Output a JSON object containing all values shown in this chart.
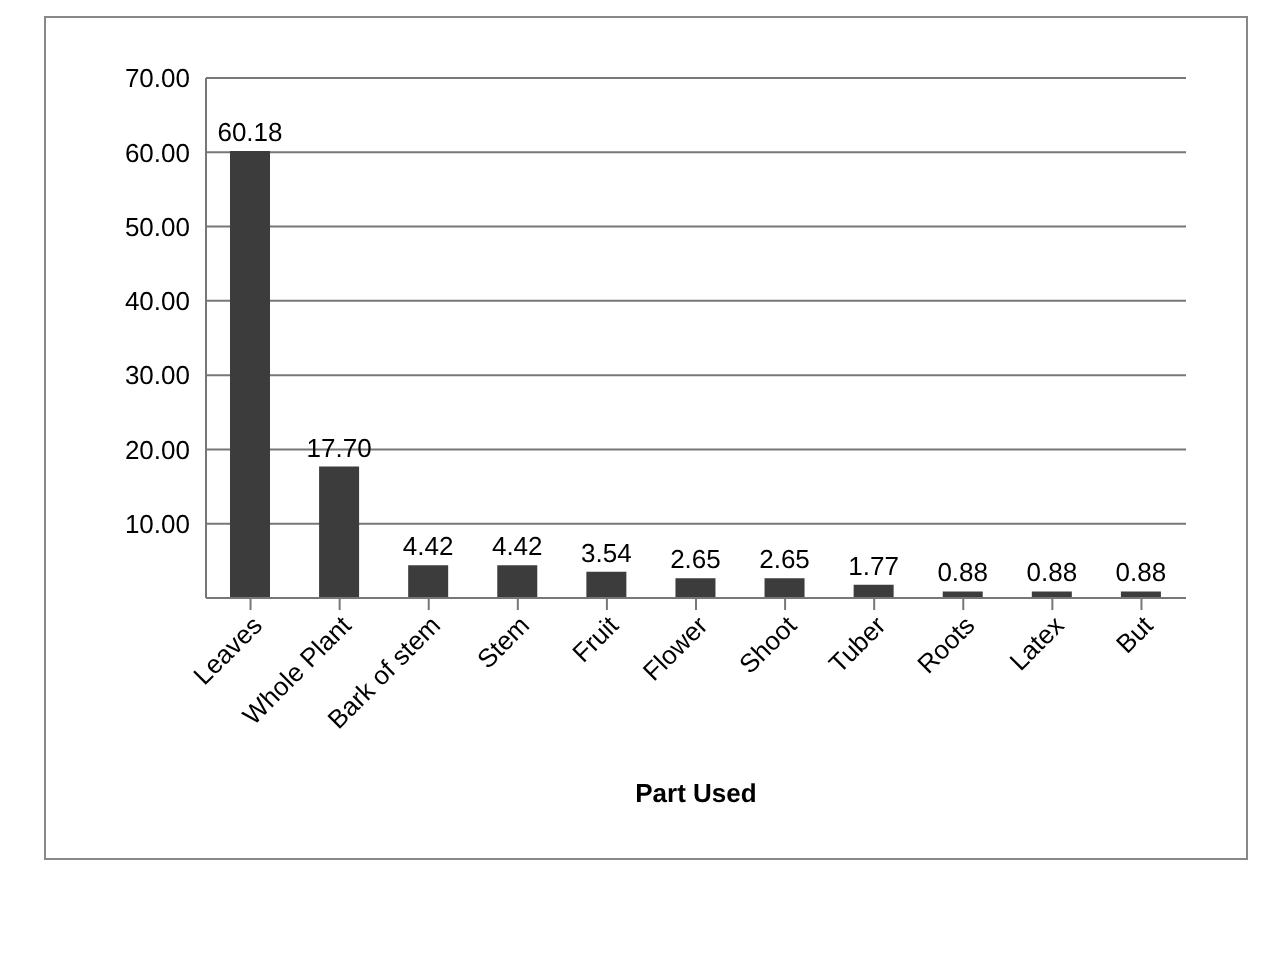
{
  "chart_data": {
    "type": "bar",
    "xlabel": "Part Used",
    "categories": [
      "Leaves",
      "Whole Plant",
      "Bark of stem",
      "Stem",
      "Fruit",
      "Flower",
      "Shoot",
      "Tuber",
      "Roots",
      "Latex",
      "But"
    ],
    "values": [
      60.18,
      17.7,
      4.42,
      4.42,
      3.54,
      2.65,
      2.65,
      1.77,
      0.88,
      0.88,
      0.88
    ],
    "value_labels": [
      "60.18",
      "17.70",
      "4.42",
      "4.42",
      "3.54",
      "2.65",
      "2.65",
      "1.77",
      "0.88",
      "0.88",
      "0.88"
    ],
    "color": "#3c3c3c",
    "ylim": [
      0,
      70
    ],
    "yticks": [
      {
        "value": 10,
        "label": "10.00"
      },
      {
        "value": 20,
        "label": "20.00"
      },
      {
        "value": 30,
        "label": "30.00"
      },
      {
        "value": 40,
        "label": "40.00"
      },
      {
        "value": 50,
        "label": "50.00"
      },
      {
        "value": 60,
        "label": "60.00"
      },
      {
        "value": 70,
        "label": "70.00"
      }
    ],
    "grid": "y"
  }
}
